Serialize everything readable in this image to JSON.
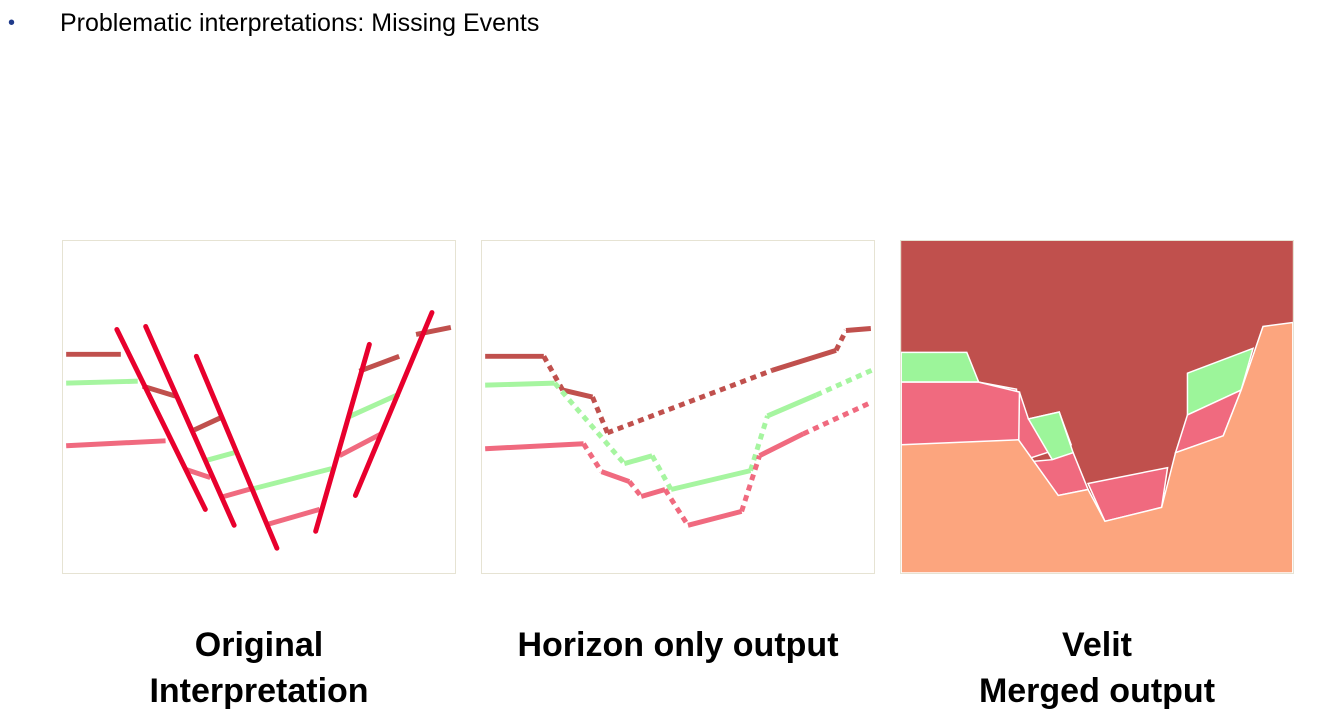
{
  "slide": {
    "bullet_symbol": "•",
    "bullet_text": "Problematic interpretations: Missing Events"
  },
  "panels": [
    {
      "caption_lines": [
        "Original",
        "Interpretation"
      ]
    },
    {
      "caption_lines": [
        "Horizon only output",
        ""
      ]
    },
    {
      "caption_lines": [
        "Velit",
        "Merged output"
      ]
    }
  ],
  "colors": {
    "horizon_top": "#c0504d",
    "horizon_middle": "#a6f5a0",
    "horizon_bottom": "#f06a7f",
    "fault": "#e8002d",
    "fill_top": "#c0504d",
    "fill_middle": "#9cf59a",
    "fill_bottom_layer": "#f06a7f",
    "fill_base": "#fca57e"
  }
}
